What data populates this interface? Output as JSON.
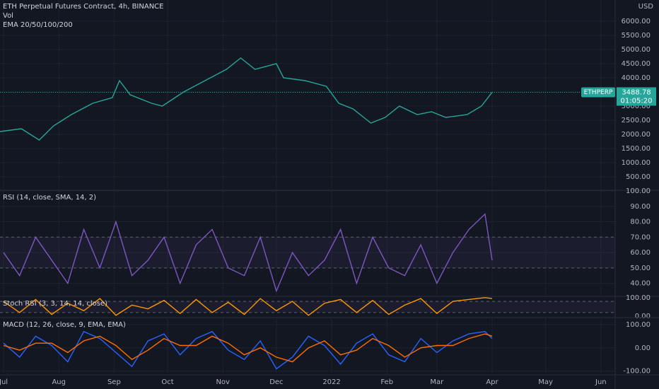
{
  "chart_data": [
    {
      "type": "line",
      "title": "ETH Perpetual Futures Contract, 4h, BINANCE",
      "subtitle": "Vol",
      "annotation": "EMA 20/50/100/200",
      "axis_unit": "USD",
      "symbol": "ETHPERP",
      "last_price": 3488.78,
      "countdown": "01:05:20",
      "x": [
        -2,
        10,
        20,
        28,
        38,
        50,
        61,
        65,
        71,
        83,
        89,
        101,
        113,
        125,
        133,
        141,
        153,
        157,
        169,
        181,
        188,
        196,
        206,
        214,
        222,
        232,
        240,
        248,
        260,
        268,
        274
      ],
      "series": [
        {
          "name": "ETHPERP",
          "color": "#26a69a",
          "values": [
            2100,
            2200,
            1800,
            2300,
            2700,
            3100,
            3300,
            3900,
            3400,
            3100,
            3000,
            3500,
            3900,
            4300,
            4700,
            4300,
            4500,
            4000,
            3900,
            3700,
            3100,
            2900,
            2400,
            2600,
            3000,
            2700,
            2800,
            2600,
            2700,
            3000,
            3490
          ]
        }
      ],
      "xlim": [
        -2,
        343
      ],
      "ylim": [
        50,
        6750
      ],
      "grid": true,
      "yticks": [
        {
          "value": 500,
          "label": "500.00"
        },
        {
          "value": 1000,
          "label": "1000.00"
        },
        {
          "value": 1500,
          "label": "1500.00"
        },
        {
          "value": 2000,
          "label": "2000.00"
        },
        {
          "value": 2500,
          "label": "2500.00"
        },
        {
          "value": 3000,
          "label": "3000.00"
        },
        {
          "value": 3500,
          "label": "3500.00"
        },
        {
          "value": 4000,
          "label": "4000.00"
        },
        {
          "value": 4500,
          "label": "4500.00"
        },
        {
          "value": 5000,
          "label": "5000.00"
        },
        {
          "value": 5500,
          "label": "5500.00"
        },
        {
          "value": 6000,
          "label": "6000.00"
        }
      ]
    },
    {
      "type": "line",
      "title": "RSI (14, close, SMA, 14, 2)",
      "x": [
        0,
        9,
        18,
        27,
        36,
        45,
        54,
        63,
        72,
        81,
        90,
        99,
        108,
        117,
        126,
        135,
        144,
        153,
        162,
        171,
        180,
        189,
        198,
        207,
        216,
        225,
        234,
        243,
        252,
        261,
        270,
        274
      ],
      "series": [
        {
          "name": "RSI",
          "color": "#7e57c2",
          "values": [
            60,
            45,
            70,
            55,
            40,
            75,
            50,
            80,
            45,
            55,
            70,
            40,
            65,
            75,
            50,
            45,
            70,
            35,
            60,
            45,
            55,
            75,
            40,
            70,
            50,
            45,
            65,
            40,
            60,
            75,
            85,
            55
          ]
        }
      ],
      "bands": [
        70,
        50
      ],
      "xlim": [
        -2,
        343
      ],
      "ylim": [
        32,
        100
      ],
      "grid": true,
      "yticks": [
        {
          "value": 40,
          "label": "40.00"
        },
        {
          "value": 50,
          "label": "50.00"
        },
        {
          "value": 60,
          "label": "60.00"
        },
        {
          "value": 70,
          "label": "70.00"
        },
        {
          "value": 80,
          "label": "80.00"
        },
        {
          "value": 90,
          "label": "90.00"
        },
        {
          "value": 100,
          "label": "100.00"
        }
      ]
    },
    {
      "type": "line",
      "title": "Stoch RSI (3, 3, 14, 14, close)",
      "x": [
        0,
        9,
        18,
        27,
        36,
        45,
        54,
        63,
        72,
        81,
        90,
        99,
        108,
        117,
        126,
        135,
        144,
        153,
        162,
        171,
        180,
        189,
        198,
        207,
        216,
        225,
        234,
        243,
        252,
        261,
        270,
        274
      ],
      "series": [
        {
          "name": "K",
          "color": "#ff9800",
          "values": [
            80,
            20,
            90,
            10,
            70,
            30,
            95,
            5,
            60,
            40,
            85,
            15,
            90,
            20,
            75,
            10,
            95,
            30,
            80,
            5,
            70,
            90,
            20,
            85,
            10,
            60,
            95,
            15,
            80,
            90,
            100,
            95
          ]
        }
      ],
      "bands": [
        80,
        20
      ],
      "xlim": [
        -2,
        343
      ],
      "ylim": [
        -3,
        103
      ],
      "grid": false,
      "yticks": [
        {
          "value": 0,
          "label": "0.00"
        },
        {
          "value": 100,
          "label": "100.00"
        }
      ]
    },
    {
      "type": "line",
      "title": "MACD (12, 26, close, 9, EMA, EMA)",
      "x": [
        0,
        9,
        18,
        27,
        36,
        45,
        54,
        63,
        72,
        81,
        90,
        99,
        108,
        117,
        126,
        135,
        144,
        153,
        162,
        171,
        180,
        189,
        198,
        207,
        216,
        225,
        234,
        243,
        252,
        261,
        270,
        274
      ],
      "series": [
        {
          "name": "MACD",
          "color": "#2962ff",
          "values": [
            20,
            -40,
            50,
            10,
            -60,
            70,
            40,
            -20,
            -80,
            30,
            60,
            -30,
            40,
            70,
            -10,
            -50,
            30,
            -90,
            -40,
            50,
            10,
            -70,
            20,
            60,
            -30,
            -60,
            40,
            -20,
            30,
            60,
            70,
            40
          ]
        },
        {
          "name": "Signal",
          "color": "#ff6d00",
          "values": [
            10,
            -10,
            20,
            20,
            -20,
            30,
            50,
            10,
            -50,
            -10,
            40,
            10,
            10,
            50,
            20,
            -30,
            0,
            -40,
            -60,
            0,
            30,
            -30,
            -10,
            40,
            10,
            -40,
            0,
            10,
            10,
            40,
            60,
            50
          ]
        }
      ],
      "xlim": [
        -2,
        343
      ],
      "ylim": [
        -110,
        127
      ],
      "grid": true,
      "yticks": [
        {
          "value": -100,
          "label": "-100.00"
        },
        {
          "value": 0,
          "label": "0.00"
        },
        {
          "value": 100,
          "label": "100.00"
        }
      ],
      "xticks": [
        {
          "value": 0,
          "label": "Jul"
        },
        {
          "value": 31,
          "label": "Aug"
        },
        {
          "value": 62,
          "label": "Sep"
        },
        {
          "value": 92,
          "label": "Oct"
        },
        {
          "value": 123,
          "label": "Nov"
        },
        {
          "value": 153,
          "label": "Dec"
        },
        {
          "value": 184,
          "label": "2022"
        },
        {
          "value": 215,
          "label": "Feb"
        },
        {
          "value": 243,
          "label": "Mar"
        },
        {
          "value": 274,
          "label": "Apr"
        },
        {
          "value": 304,
          "label": "May"
        },
        {
          "value": 335,
          "label": "Jun"
        }
      ]
    }
  ]
}
